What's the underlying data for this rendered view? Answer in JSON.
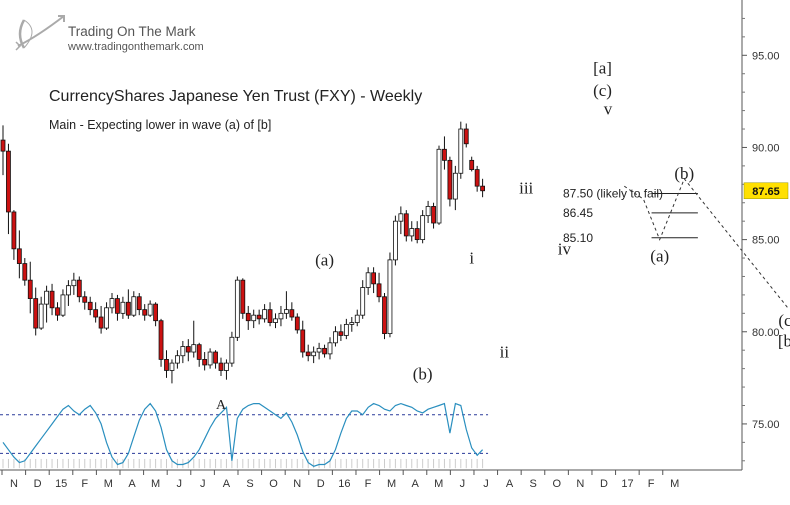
{
  "brand": {
    "name": "Trading On The Mark",
    "url": "www.tradingonthemark.com"
  },
  "chart_data": {
    "type": "candlestick",
    "title": "CurrencyShares Japanese Yen Trust (FXY) - Weekly",
    "subtitle": "Main - Expecting lower in wave (a) of [b]",
    "last_price": "87.65",
    "ylim": [
      72.5,
      98.0
    ],
    "y_ticks": [
      75.0,
      80.0,
      85.0,
      90.0,
      95.0
    ],
    "y_tick_labels": [
      "75.00",
      "80.00",
      "85.00",
      "90.00",
      "95.00"
    ],
    "x_month_labels": [
      "N",
      "D",
      "15",
      "F",
      "M",
      "A",
      "M",
      "J",
      "J",
      "A",
      "S",
      "O",
      "N",
      "D",
      "16",
      "F",
      "M",
      "A",
      "M",
      "J",
      "J",
      "A",
      "S",
      "O",
      "N",
      "D",
      "17",
      "F",
      "M"
    ],
    "weeks_per_month": 4.33,
    "candles": [
      [
        90.4,
        91.2,
        88.5,
        89.8
      ],
      [
        89.8,
        90.2,
        85.3,
        86.5
      ],
      [
        86.5,
        86.6,
        83.9,
        84.5
      ],
      [
        84.5,
        85.5,
        82.9,
        83.7
      ],
      [
        83.7,
        84.0,
        82.5,
        82.8
      ],
      [
        82.8,
        83.8,
        81.0,
        81.8
      ],
      [
        81.8,
        82.4,
        79.8,
        80.2
      ],
      [
        80.2,
        81.9,
        80.1,
        81.5
      ],
      [
        81.5,
        82.5,
        80.5,
        82.2
      ],
      [
        82.2,
        82.6,
        80.9,
        81.3
      ],
      [
        81.3,
        81.6,
        80.6,
        80.9
      ],
      [
        80.9,
        82.3,
        80.8,
        82.0
      ],
      [
        82.0,
        82.8,
        81.4,
        82.5
      ],
      [
        82.5,
        83.2,
        82.0,
        82.8
      ],
      [
        82.8,
        83.0,
        81.6,
        81.9
      ],
      [
        81.9,
        82.2,
        81.2,
        81.6
      ],
      [
        81.6,
        81.9,
        80.9,
        81.2
      ],
      [
        81.2,
        81.6,
        80.5,
        80.8
      ],
      [
        80.8,
        81.4,
        79.9,
        80.2
      ],
      [
        80.2,
        81.6,
        80.1,
        81.3
      ],
      [
        81.3,
        82.1,
        81.0,
        81.8
      ],
      [
        81.8,
        82.0,
        80.6,
        81.0
      ],
      [
        81.0,
        81.9,
        80.7,
        81.6
      ],
      [
        81.6,
        82.3,
        80.7,
        80.9
      ],
      [
        80.9,
        82.2,
        80.8,
        81.9
      ],
      [
        81.9,
        82.1,
        80.9,
        81.2
      ],
      [
        81.2,
        81.5,
        80.6,
        80.9
      ],
      [
        80.9,
        81.7,
        80.8,
        81.5
      ],
      [
        81.5,
        81.6,
        80.3,
        80.6
      ],
      [
        80.6,
        80.7,
        78.1,
        78.5
      ],
      [
        78.5,
        79.0,
        77.5,
        77.9
      ],
      [
        77.9,
        78.5,
        77.2,
        78.3
      ],
      [
        78.3,
        79.0,
        78.0,
        78.7
      ],
      [
        78.7,
        79.5,
        78.3,
        79.2
      ],
      [
        79.2,
        79.6,
        78.4,
        78.9
      ],
      [
        78.9,
        80.6,
        78.6,
        79.3
      ],
      [
        79.3,
        79.4,
        78.1,
        78.5
      ],
      [
        78.5,
        78.9,
        77.9,
        78.2
      ],
      [
        78.2,
        79.1,
        78.0,
        78.9
      ],
      [
        78.9,
        79.0,
        78.0,
        78.3
      ],
      [
        78.3,
        78.6,
        77.6,
        77.9
      ],
      [
        77.9,
        78.5,
        77.4,
        78.3
      ],
      [
        78.3,
        80.0,
        78.1,
        79.7
      ],
      [
        79.7,
        83.0,
        79.5,
        82.8
      ],
      [
        82.8,
        82.9,
        80.7,
        81.0
      ],
      [
        81.0,
        81.4,
        80.1,
        80.6
      ],
      [
        80.6,
        81.2,
        80.2,
        80.9
      ],
      [
        80.9,
        81.2,
        80.4,
        80.7
      ],
      [
        80.7,
        81.5,
        80.5,
        81.2
      ],
      [
        81.2,
        81.6,
        80.3,
        80.5
      ],
      [
        80.5,
        81.0,
        80.2,
        80.7
      ],
      [
        80.7,
        81.4,
        80.3,
        81.0
      ],
      [
        81.0,
        82.2,
        80.7,
        81.2
      ],
      [
        81.2,
        81.6,
        80.6,
        80.8
      ],
      [
        80.8,
        81.0,
        79.9,
        80.1
      ],
      [
        80.1,
        80.6,
        78.6,
        78.9
      ],
      [
        78.9,
        79.3,
        78.4,
        78.7
      ],
      [
        78.7,
        79.2,
        78.3,
        78.9
      ],
      [
        78.9,
        79.4,
        78.5,
        79.1
      ],
      [
        79.1,
        79.3,
        78.6,
        78.8
      ],
      [
        78.8,
        79.7,
        78.5,
        79.4
      ],
      [
        79.4,
        80.3,
        79.2,
        80.0
      ],
      [
        80.0,
        80.4,
        79.5,
        79.8
      ],
      [
        79.8,
        80.7,
        79.6,
        80.4
      ],
      [
        80.4,
        80.8,
        80.0,
        80.5
      ],
      [
        80.5,
        81.2,
        80.3,
        80.9
      ],
      [
        80.9,
        82.8,
        80.7,
        82.4
      ],
      [
        82.4,
        83.5,
        82.0,
        83.2
      ],
      [
        83.2,
        83.5,
        82.1,
        82.6
      ],
      [
        82.6,
        83.2,
        81.6,
        81.9
      ],
      [
        81.9,
        82.1,
        79.6,
        79.9
      ],
      [
        79.9,
        84.3,
        79.7,
        83.9
      ],
      [
        83.9,
        86.3,
        83.6,
        86.0
      ],
      [
        86.0,
        86.8,
        85.3,
        86.4
      ],
      [
        86.4,
        86.6,
        84.9,
        85.2
      ],
      [
        85.2,
        86.0,
        84.9,
        85.6
      ],
      [
        85.6,
        86.0,
        84.8,
        85.0
      ],
      [
        85.0,
        86.6,
        84.8,
        86.3
      ],
      [
        86.3,
        87.1,
        85.9,
        86.8
      ],
      [
        86.8,
        87.0,
        85.6,
        85.9
      ],
      [
        85.9,
        90.1,
        85.8,
        89.9
      ],
      [
        89.9,
        90.6,
        88.8,
        89.3
      ],
      [
        89.3,
        89.5,
        86.8,
        87.2
      ],
      [
        87.2,
        89.0,
        86.6,
        88.6
      ],
      [
        88.6,
        91.4,
        88.3,
        91.0
      ],
      [
        91.0,
        91.3,
        90.0,
        90.2
      ],
      [
        89.3,
        89.5,
        88.7,
        88.8
      ],
      [
        88.8,
        89.0,
        87.6,
        87.9
      ],
      [
        87.9,
        88.3,
        87.3,
        87.65
      ]
    ],
    "oscillator": [
      74.0,
      73.6,
      73.2,
      72.9,
      73.0,
      73.4,
      73.8,
      74.2,
      74.6,
      75.0,
      75.4,
      75.8,
      76.0,
      75.7,
      75.5,
      75.8,
      76.0,
      75.6,
      75.0,
      74.0,
      73.2,
      72.8,
      72.9,
      73.4,
      74.3,
      75.2,
      75.8,
      76.1,
      75.7,
      74.8,
      73.6,
      73.0,
      72.8,
      72.8,
      72.9,
      73.2,
      73.6,
      74.2,
      74.8,
      75.3,
      75.6,
      75.9,
      73.0,
      75.3,
      75.8,
      76.0,
      76.1,
      76.1,
      75.9,
      75.7,
      75.5,
      75.3,
      75.6,
      75.1,
      74.4,
      73.5,
      72.9,
      72.7,
      72.8,
      72.8,
      73.0,
      73.6,
      74.5,
      75.3,
      75.7,
      75.7,
      75.5,
      75.9,
      76.1,
      76.0,
      75.8,
      75.7,
      76.0,
      76.1,
      76.0,
      75.9,
      75.7,
      75.6,
      75.8,
      75.9,
      76.0,
      76.1,
      74.5,
      76.1,
      76.0,
      74.7,
      73.7,
      73.3,
      73.6
    ],
    "oscillator_levels": [
      75.5,
      73.4
    ],
    "wave_labels": [
      {
        "text": "A",
        "x": 40,
        "y": 75.8,
        "size": "small"
      },
      {
        "text": "(a)",
        "x": 59,
        "y": 83.6,
        "size": "normal"
      },
      {
        "text": "(b)",
        "x": 77,
        "y": 77.4,
        "size": "normal"
      },
      {
        "text": "i",
        "x": 86,
        "y": 83.7,
        "size": "normal"
      },
      {
        "text": "ii",
        "x": 92,
        "y": 78.6,
        "size": "normal"
      },
      {
        "text": "iii",
        "x": 96,
        "y": 87.5,
        "size": "normal"
      },
      {
        "text": "iv",
        "x": 103,
        "y": 84.2,
        "size": "normal"
      },
      {
        "text": "v",
        "x": 111,
        "y": 91.8,
        "size": "normal"
      },
      {
        "text": "(c)",
        "x": 110,
        "y": 92.8,
        "size": "normal"
      },
      {
        "text": "[a]",
        "x": 110,
        "y": 94.0,
        "size": "normal"
      },
      {
        "text": "(b)",
        "x": 125,
        "y": 88.3,
        "size": "normal"
      },
      {
        "text": "(a)",
        "x": 120.5,
        "y": 83.8,
        "size": "normal"
      },
      {
        "text": "(c)",
        "x": 144,
        "y": 80.3,
        "size": "normal"
      },
      {
        "text": "[b]",
        "x": 144,
        "y": 79.2,
        "size": "normal"
      }
    ],
    "fib_levels": [
      {
        "value": 87.5,
        "label": "87.50 (likely to fail)"
      },
      {
        "value": 86.45,
        "label": "86.45"
      },
      {
        "value": 85.1,
        "label": "85.10"
      }
    ],
    "projection_path": [
      [
        114,
        87.9
      ],
      [
        117.5,
        87.2
      ],
      [
        120.5,
        85.0
      ],
      [
        125,
        88.3
      ],
      [
        144,
        81.3
      ]
    ],
    "colors": {
      "up": "#ffffff",
      "down": "#cc1111",
      "wick": "#111111",
      "oscillator": "#2a8fbf",
      "level_line": "#2a3a9a",
      "price_box": "#ffe000",
      "axis_text": "#333333"
    }
  }
}
